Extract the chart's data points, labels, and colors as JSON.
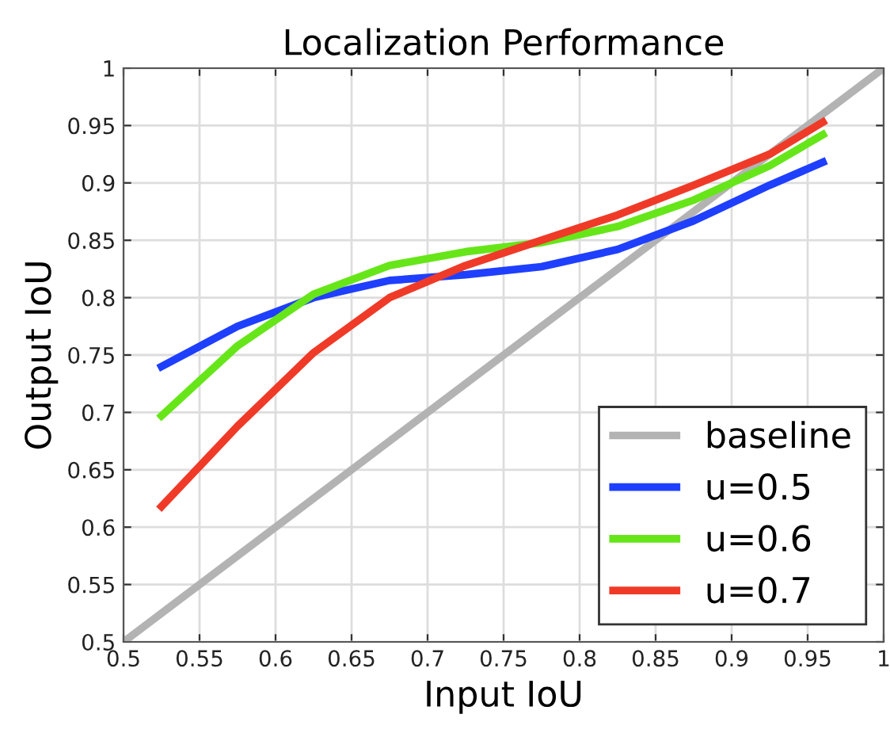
{
  "chart_data": {
    "type": "line",
    "title": "Localization Performance",
    "xlabel": "Input IoU",
    "ylabel": "Output IoU",
    "xlim": [
      0.5,
      1
    ],
    "ylim": [
      0.5,
      1
    ],
    "xticks": [
      0.5,
      0.55,
      0.6,
      0.65,
      0.7,
      0.75,
      0.8,
      0.85,
      0.9,
      0.95,
      1
    ],
    "yticks": [
      0.5,
      0.55,
      0.6,
      0.65,
      0.7,
      0.75,
      0.8,
      0.85,
      0.9,
      0.95,
      1
    ],
    "grid": true,
    "legend": "bottom right",
    "marker": "none",
    "line_style": "solid",
    "series": [
      {
        "name": "baseline",
        "color": "#b3b3b3",
        "x": [
          0.5,
          1
        ],
        "values": [
          0.5,
          1
        ]
      },
      {
        "name": "u=0.5",
        "color": "#1f3fff",
        "x": [
          0.525,
          0.575,
          0.625,
          0.675,
          0.725,
          0.775,
          0.825,
          0.875,
          0.925,
          0.96
        ],
        "values": [
          0.74,
          0.775,
          0.8,
          0.815,
          0.82,
          0.827,
          0.842,
          0.867,
          0.898,
          0.918
        ]
      },
      {
        "name": "u=0.6",
        "color": "#66e619",
        "x": [
          0.525,
          0.575,
          0.625,
          0.675,
          0.725,
          0.775,
          0.825,
          0.875,
          0.925,
          0.96
        ],
        "values": [
          0.697,
          0.758,
          0.803,
          0.828,
          0.84,
          0.848,
          0.862,
          0.885,
          0.915,
          0.942
        ]
      },
      {
        "name": "u=0.7",
        "color": "#f03a28",
        "x": [
          0.525,
          0.575,
          0.625,
          0.675,
          0.725,
          0.775,
          0.825,
          0.875,
          0.925,
          0.96
        ],
        "values": [
          0.618,
          0.688,
          0.752,
          0.8,
          0.828,
          0.85,
          0.872,
          0.898,
          0.925,
          0.953
        ]
      }
    ]
  }
}
